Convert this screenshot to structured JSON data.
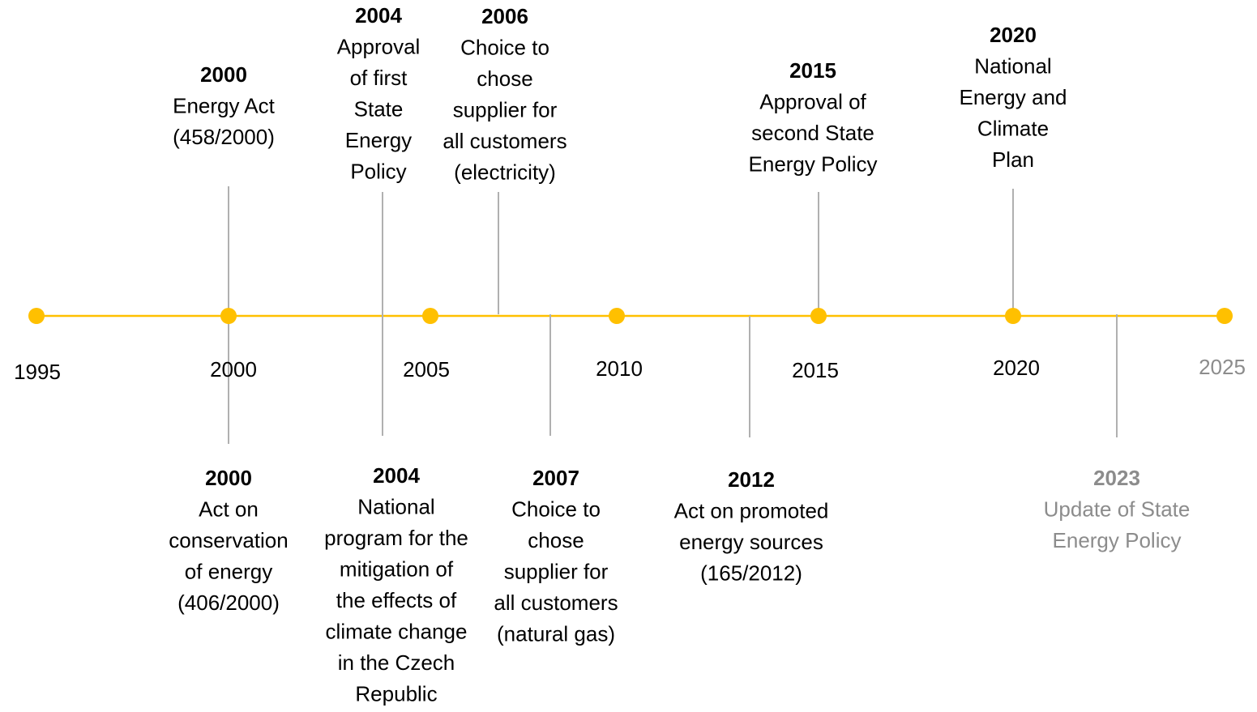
{
  "axis_labels": [
    "1995",
    "2000",
    "2005",
    "2010",
    "2015",
    "2020",
    "2025"
  ],
  "events_above": [
    {
      "year": "2000",
      "lines": [
        "Energy Act",
        "(458/2000)"
      ]
    },
    {
      "year": "2004",
      "lines": [
        "Approval",
        "of first",
        "State",
        "Energy",
        "Policy"
      ]
    },
    {
      "year": "2006",
      "lines": [
        "Choice to",
        "chose",
        "supplier for",
        "all customers",
        "(electricity)"
      ]
    },
    {
      "year": "2015",
      "lines": [
        "Approval of",
        "second State",
        "Energy Policy"
      ]
    },
    {
      "year": "2020",
      "lines": [
        "National",
        "Energy and",
        "Climate",
        "Plan"
      ]
    }
  ],
  "events_below": [
    {
      "year": "2000",
      "lines": [
        "Act on",
        "conservation",
        "of energy",
        "(406/2000)"
      ]
    },
    {
      "year": "2004",
      "lines": [
        "National",
        "program for the",
        "mitigation of",
        "the effects of",
        "climate change",
        "in the Czech",
        "Republic"
      ]
    },
    {
      "year": "2007",
      "lines": [
        "Choice to",
        "chose",
        "supplier for",
        "all customers",
        "(natural gas)"
      ]
    },
    {
      "year": "2012",
      "lines": [
        "Act on promoted",
        "energy sources",
        "(165/2012)"
      ]
    },
    {
      "year": "2023",
      "lines": [
        "Update of State",
        "Energy Policy"
      ]
    }
  ]
}
